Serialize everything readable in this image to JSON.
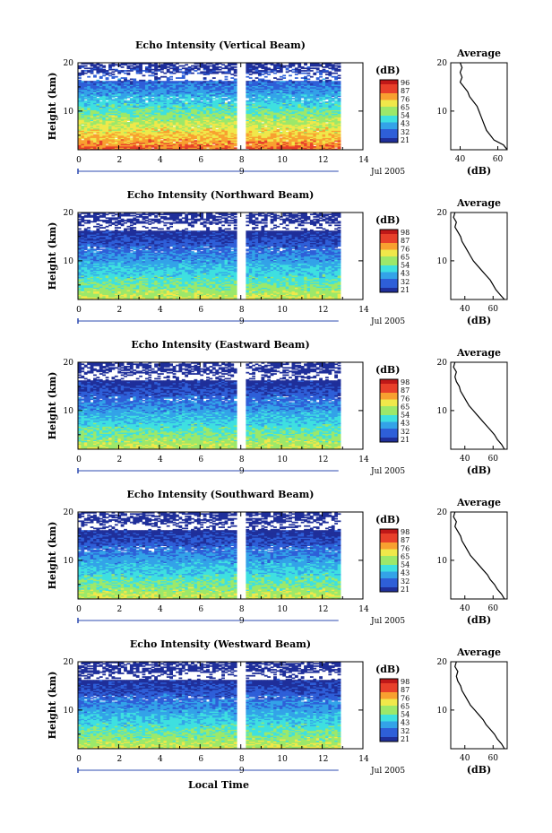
{
  "chart_data": [
    {
      "type": "heatmap",
      "title": "Echo Intensity (Vertical Beam)",
      "ylabel": "Height (km)",
      "ylim": [
        2,
        20
      ],
      "xlim": [
        0,
        14
      ],
      "x_ticks": [
        "0",
        "2",
        "4",
        "6",
        "8",
        "10",
        "12",
        "14"
      ],
      "y_ticks": [
        "10",
        "20"
      ],
      "date_marker": "9",
      "date_label": "Jul 2005",
      "colorbar": {
        "unit": "(dB)",
        "ticks": [
          "96",
          "87",
          "76",
          "65",
          "54",
          "43",
          "32",
          "21"
        ]
      },
      "profile": {
        "title": "Average",
        "xlabel": "(dB)",
        "x_ticks": [
          "40",
          "60"
        ],
        "y_ticks": [
          "10",
          "20"
        ],
        "xlim": [
          35,
          65
        ],
        "height": [
          2,
          3,
          4,
          5,
          6,
          7,
          8,
          9,
          10,
          11,
          12,
          13,
          14,
          15,
          16,
          17,
          18,
          19,
          20
        ],
        "value": [
          65,
          63,
          58,
          56,
          54,
          53,
          52,
          51,
          50,
          49,
          47,
          45,
          44,
          42,
          40,
          41,
          40,
          41,
          40
        ]
      }
    },
    {
      "type": "heatmap",
      "title": "Echo Intensity (Northward Beam)",
      "ylabel": "Height (km)",
      "ylim": [
        2,
        20
      ],
      "xlim": [
        0,
        14
      ],
      "x_ticks": [
        "0",
        "2",
        "4",
        "6",
        "8",
        "10",
        "12",
        "14"
      ],
      "y_ticks": [
        "10",
        "20"
      ],
      "date_marker": "9",
      "date_label": "Jul 2005",
      "colorbar": {
        "unit": "(dB)",
        "ticks": [
          "98",
          "87",
          "76",
          "65",
          "54",
          "43",
          "32",
          "21"
        ]
      },
      "profile": {
        "title": "Average",
        "xlabel": "(dB)",
        "x_ticks": [
          "40",
          "60"
        ],
        "y_ticks": [
          "10",
          "20"
        ],
        "xlim": [
          30,
          70
        ],
        "height": [
          2,
          3,
          4,
          5,
          6,
          7,
          8,
          9,
          10,
          11,
          12,
          13,
          14,
          15,
          16,
          17,
          18,
          19,
          20
        ],
        "value": [
          68,
          65,
          62,
          60,
          58,
          55,
          52,
          49,
          46,
          44,
          42,
          40,
          38,
          37,
          35,
          33,
          34,
          32,
          33
        ]
      }
    },
    {
      "type": "heatmap",
      "title": "Echo Intensity (Eastward Beam)",
      "ylabel": "Height (km)",
      "ylim": [
        2,
        20
      ],
      "xlim": [
        0,
        14
      ],
      "x_ticks": [
        "0",
        "2",
        "4",
        "6",
        "8",
        "10",
        "12",
        "14"
      ],
      "y_ticks": [
        "10",
        "20"
      ],
      "date_marker": "9",
      "date_label": "Jul 2005",
      "colorbar": {
        "unit": "(dB)",
        "ticks": [
          "98",
          "87",
          "76",
          "65",
          "54",
          "43",
          "32",
          "21"
        ]
      },
      "profile": {
        "title": "Average",
        "xlabel": "(dB)",
        "x_ticks": [
          "40",
          "60"
        ],
        "y_ticks": [
          "10",
          "20"
        ],
        "xlim": [
          30,
          70
        ],
        "height": [
          2,
          3,
          4,
          5,
          6,
          7,
          8,
          9,
          10,
          11,
          12,
          13,
          14,
          15,
          16,
          17,
          18,
          19,
          20
        ],
        "value": [
          68,
          66,
          63,
          61,
          58,
          55,
          52,
          49,
          46,
          43,
          41,
          39,
          37,
          36,
          34,
          33,
          34,
          32,
          33
        ]
      }
    },
    {
      "type": "heatmap",
      "title": "Echo Intensity (Southward Beam)",
      "ylabel": "Height (km)",
      "ylim": [
        2,
        20
      ],
      "xlim": [
        0,
        14
      ],
      "x_ticks": [
        "0",
        "2",
        "4",
        "6",
        "8",
        "10",
        "12",
        "14"
      ],
      "y_ticks": [
        "10",
        "20"
      ],
      "date_marker": "9",
      "date_label": "Jul 2005",
      "colorbar": {
        "unit": "(dB)",
        "ticks": [
          "98",
          "87",
          "76",
          "65",
          "54",
          "43",
          "32",
          "21"
        ]
      },
      "profile": {
        "title": "Average",
        "xlabel": "(dB)",
        "x_ticks": [
          "40",
          "60"
        ],
        "y_ticks": [
          "10",
          "20"
        ],
        "xlim": [
          30,
          70
        ],
        "height": [
          2,
          3,
          4,
          5,
          6,
          7,
          8,
          9,
          10,
          11,
          12,
          13,
          14,
          15,
          16,
          17,
          18,
          19,
          20
        ],
        "value": [
          68,
          66,
          63,
          61,
          58,
          56,
          53,
          50,
          47,
          44,
          42,
          40,
          38,
          37,
          35,
          33,
          34,
          32,
          33
        ]
      }
    },
    {
      "type": "heatmap",
      "title": "Echo Intensity (Westward Beam)",
      "ylabel": "Height (km)",
      "ylim": [
        2,
        20
      ],
      "xlim": [
        0,
        14
      ],
      "x_ticks": [
        "0",
        "2",
        "4",
        "6",
        "8",
        "10",
        "12",
        "14"
      ],
      "y_ticks": [
        "10",
        "20"
      ],
      "date_marker": "9",
      "date_label": "Jul 2005",
      "colorbar": {
        "unit": "(dB)",
        "ticks": [
          "98",
          "87",
          "76",
          "65",
          "54",
          "43",
          "32",
          "21"
        ]
      },
      "profile": {
        "title": "Average",
        "xlabel": "(dB)",
        "x_ticks": [
          "40",
          "60"
        ],
        "y_ticks": [
          "10",
          "20"
        ],
        "xlim": [
          30,
          70
        ],
        "height": [
          2,
          3,
          4,
          5,
          6,
          7,
          8,
          9,
          10,
          11,
          12,
          13,
          14,
          15,
          16,
          17,
          18,
          19,
          20
        ],
        "value": [
          68,
          66,
          63,
          61,
          58,
          55,
          53,
          50,
          47,
          44,
          42,
          40,
          38,
          37,
          35,
          34,
          35,
          33,
          34
        ]
      }
    }
  ],
  "xlabel": "Local Time",
  "colors": [
    "#1f2f9a",
    "#2e5fd8",
    "#33a3e8",
    "#3ee0e0",
    "#9ce86a",
    "#f0e84a",
    "#f8a030",
    "#e8402a",
    "#c01818"
  ]
}
